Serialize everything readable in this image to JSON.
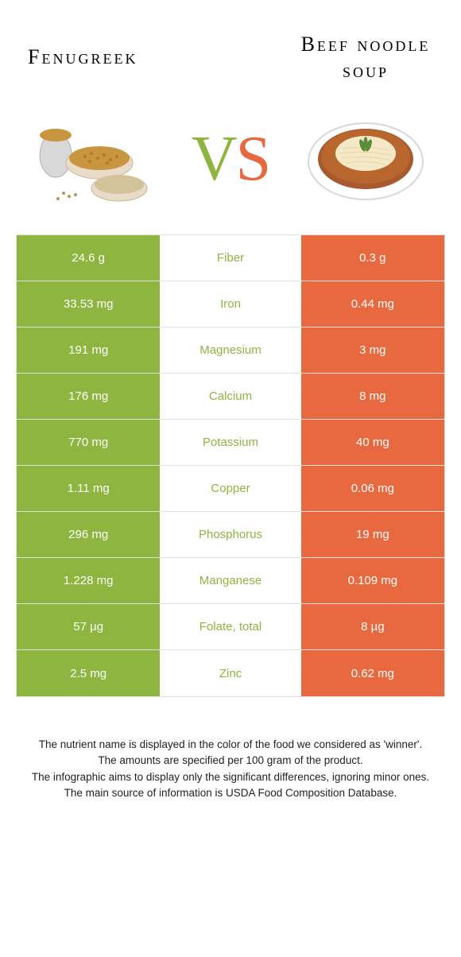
{
  "colors": {
    "left": "#8eb53f",
    "right": "#e8683f",
    "border": "#e0e0e0",
    "text": "#222222"
  },
  "header": {
    "left_title": "Fenugreek",
    "right_title": "Beef noodle soup"
  },
  "vs": {
    "v": "V",
    "s": "S"
  },
  "rows": [
    {
      "label": "Fiber",
      "left": "24.6 g",
      "right": "0.3 g",
      "winner": "left"
    },
    {
      "label": "Iron",
      "left": "33.53 mg",
      "right": "0.44 mg",
      "winner": "left"
    },
    {
      "label": "Magnesium",
      "left": "191 mg",
      "right": "3 mg",
      "winner": "left"
    },
    {
      "label": "Calcium",
      "left": "176 mg",
      "right": "8 mg",
      "winner": "left"
    },
    {
      "label": "Potassium",
      "left": "770 mg",
      "right": "40 mg",
      "winner": "left"
    },
    {
      "label": "Copper",
      "left": "1.11 mg",
      "right": "0.06 mg",
      "winner": "left"
    },
    {
      "label": "Phosphorus",
      "left": "296 mg",
      "right": "19 mg",
      "winner": "left"
    },
    {
      "label": "Manganese",
      "left": "1.228 mg",
      "right": "0.109 mg",
      "winner": "left"
    },
    {
      "label": "Folate, total",
      "left": "57 µg",
      "right": "8 µg",
      "winner": "left"
    },
    {
      "label": "Zinc",
      "left": "2.5 mg",
      "right": "0.62 mg",
      "winner": "left"
    }
  ],
  "footnotes": [
    "The nutrient name is displayed in the color of the food we considered as 'winner'.",
    "The amounts are specified per 100 gram of the product.",
    "The infographic aims to display only the significant differences, ignoring minor ones.",
    "The main source of information is USDA Food Composition Database."
  ]
}
